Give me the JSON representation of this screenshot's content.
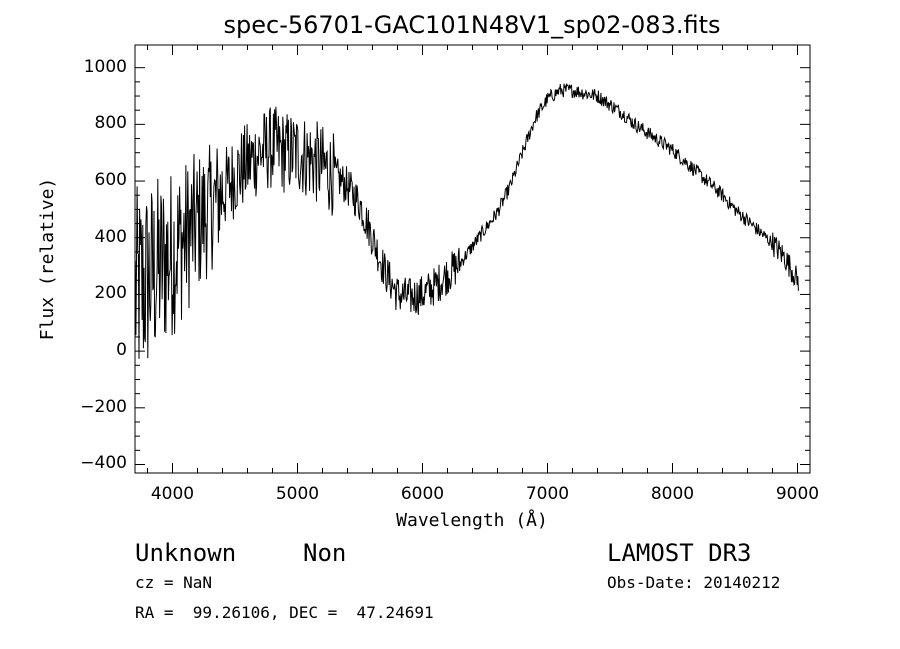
{
  "chart_data": {
    "type": "line",
    "title": "spec-56701-GAC101N48V1_sp02-083.fits",
    "xlabel": "Wavelength (Å)",
    "ylabel": "Flux (relative)",
    "xlim": [
      3700,
      9100
    ],
    "ylim": [
      -430,
      1080
    ],
    "xticks": [
      4000,
      5000,
      6000,
      7000,
      8000,
      9000
    ],
    "yticks": [
      -400,
      -200,
      0,
      200,
      400,
      600,
      800,
      1000
    ],
    "xtick_labels": [
      "4000",
      "5000",
      "6000",
      "7000",
      "8000",
      "9000"
    ],
    "ytick_labels": [
      "−400",
      "−200",
      "0",
      "200",
      "400",
      "600",
      "800",
      "1000"
    ],
    "series": [
      {
        "name": "flux",
        "x": [
          3700,
          3800,
          3900,
          4000,
          4100,
          4200,
          4300,
          4400,
          4500,
          4600,
          4700,
          4800,
          4900,
          5000,
          5100,
          5200,
          5300,
          5400,
          5500,
          5600,
          5700,
          5800,
          5900,
          6000,
          6100,
          6200,
          6300,
          6400,
          6500,
          6600,
          6700,
          6800,
          6900,
          7000,
          7100,
          7200,
          7300,
          7400,
          7500,
          7600,
          7700,
          7800,
          7900,
          8000,
          8100,
          8200,
          8300,
          8400,
          8500,
          8600,
          8700,
          8800,
          8900,
          9000
        ],
        "y": [
          200,
          250,
          300,
          350,
          400,
          450,
          500,
          560,
          620,
          660,
          700,
          720,
          700,
          700,
          680,
          650,
          620,
          580,
          520,
          400,
          280,
          200,
          190,
          200,
          230,
          270,
          310,
          370,
          430,
          490,
          580,
          700,
          820,
          890,
          920,
          920,
          910,
          900,
          870,
          840,
          800,
          770,
          740,
          710,
          670,
          630,
          590,
          550,
          500,
          460,
          420,
          380,
          330,
          250
        ]
      }
    ]
  },
  "footer": {
    "object_type": "Unknown",
    "subclass": "Non",
    "survey": "LAMOST DR3",
    "redshift": "cz = NaN",
    "obs_date": "Obs-Date: 20140212",
    "coords": "RA =  99.26106, DEC =  47.24691"
  }
}
